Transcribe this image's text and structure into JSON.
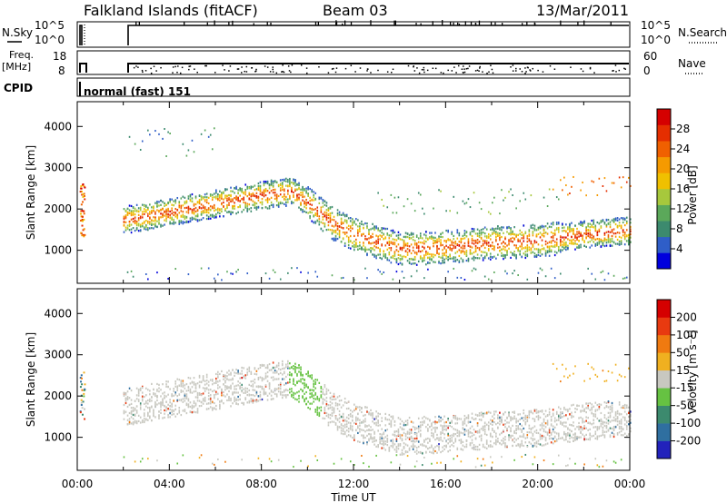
{
  "header": {
    "station": "Falkland Islands (fitACF)",
    "beam": "Beam 03",
    "date": "13/Mar/2011"
  },
  "strips": {
    "nsky_label": "N.Sky",
    "nsearch_label": "N.Search",
    "noise_ticks": [
      "10^5",
      "10^0"
    ],
    "freq_label": "Freq.",
    "freq_unit": "[MHz]",
    "freq_ticks": [
      "18",
      "8"
    ],
    "nave_label": "Nave",
    "nave_ticks": [
      "60",
      "0"
    ],
    "cpid_label": "CPID",
    "cpid_value": "normal (fast) 151"
  },
  "colorbars": {
    "power": {
      "label": "Power [dB]",
      "ticks": [
        "28",
        "24",
        "20",
        "16",
        "12",
        "8",
        "4"
      ],
      "colors": [
        "#0000dd",
        "#2f5ec8",
        "#3c8a6e",
        "#5ba85a",
        "#a7c83c",
        "#f0c000",
        "#f59a00",
        "#f06000",
        "#e52e00",
        "#d50000"
      ]
    },
    "velocity": {
      "label": "Velocity [m s⁻¹]",
      "ticks": [
        "200",
        "100",
        "50",
        "15",
        "-15",
        "-50",
        "-100",
        "-200"
      ],
      "colors": [
        "#2222bb",
        "#2f6fa0",
        "#3c8a6e",
        "#66c242",
        "#c8c8c0",
        "#f0b020",
        "#f07a10",
        "#e83a10",
        "#d50000"
      ]
    }
  },
  "chart_data": [
    {
      "type": "heatmap",
      "name": "power",
      "ylabel": "Slant Range [km]",
      "yticks": [
        "4000",
        "3000",
        "2000",
        "1000"
      ],
      "ylim": [
        200,
        4600
      ],
      "xlim_hours": [
        0,
        24
      ],
      "xtick_labels": [
        "00:00",
        "04:00",
        "08:00",
        "12:00",
        "16:00",
        "20:00",
        "00:00"
      ],
      "colorbar": "Power [dB]",
      "color_range": [
        0,
        30
      ],
      "grid": false
    },
    {
      "type": "heatmap",
      "name": "velocity",
      "ylabel": "Slant Range [km]",
      "yticks": [
        "4000",
        "3000",
        "2000",
        "1000"
      ],
      "ylim": [
        200,
        4600
      ],
      "xlim_hours": [
        0,
        24
      ],
      "xlabel": "Time UT",
      "xtick_labels": [
        "00:00",
        "04:00",
        "08:00",
        "12:00",
        "16:00",
        "20:00",
        "00:00"
      ],
      "colorbar": "Velocity [m s⁻¹]",
      "color_range": [
        -200,
        200
      ],
      "grid": false
    }
  ]
}
